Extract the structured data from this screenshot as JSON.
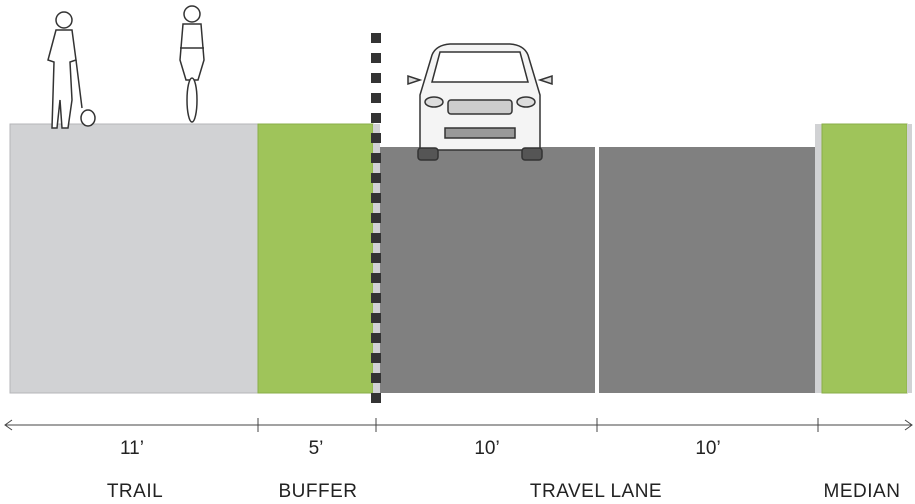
{
  "dimensions": [
    "11’",
    "5’",
    "10’",
    "10’"
  ],
  "segments": [
    "TRAIL",
    "BUFFER",
    "TRAVEL LANE",
    "MEDIAN"
  ]
}
